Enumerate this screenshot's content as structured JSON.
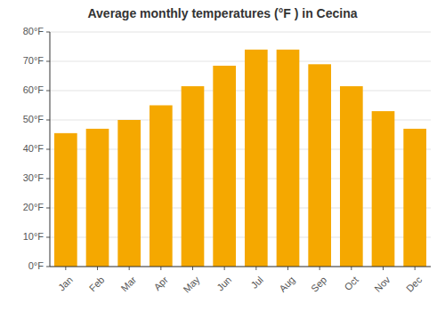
{
  "chart_data": {
    "type": "bar",
    "title": "Average monthly temperatures (°F ) in Cecina",
    "categories": [
      "Jan",
      "Feb",
      "Mar",
      "Apr",
      "May",
      "Jun",
      "Jul",
      "Aug",
      "Sep",
      "Oct",
      "Nov",
      "Dec"
    ],
    "values": [
      45.5,
      47,
      50,
      55,
      61.5,
      68.5,
      74,
      74,
      69,
      61.5,
      53,
      47
    ],
    "color": "#F5A800",
    "ylim": [
      0,
      80
    ],
    "yticks": [
      {
        "value": 0,
        "label": "0°F"
      },
      {
        "value": 10,
        "label": "10°F"
      },
      {
        "value": 20,
        "label": "20°F"
      },
      {
        "value": 30,
        "label": "30°F"
      },
      {
        "value": 40,
        "label": "40°F"
      },
      {
        "value": 50,
        "label": "50°F"
      },
      {
        "value": 60,
        "label": "60°F"
      },
      {
        "value": 70,
        "label": "70°F"
      },
      {
        "value": 80,
        "label": "80°F"
      }
    ],
    "grid": true
  }
}
